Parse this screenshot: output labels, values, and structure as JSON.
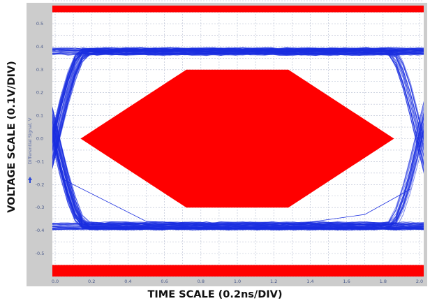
{
  "chart_data": {
    "type": "line",
    "title": "",
    "xlabel": "TIME SCALE (0.2ns/DIV)",
    "ylabel": "VOLTAGE SCALE (0.1V/DIV)",
    "signal_label": "Differential Signal, V",
    "xlim": [
      0.0,
      2.0
    ],
    "ylim": [
      -0.6,
      0.6
    ],
    "x_ticks": [
      "0.0",
      "0.2",
      "0.4",
      "0.6",
      "0.8",
      "1.0",
      "1.2",
      "1.4",
      "1.6",
      "1.8",
      "2.0"
    ],
    "y_ticks": [
      "0.5",
      "0.4",
      "0.3",
      "0.2",
      "0.1",
      "0.0",
      "-0.1",
      "-0.2",
      "-0.3",
      "-0.4",
      "-0.5"
    ],
    "grid": true,
    "colors": {
      "traces": "#1a2ee0",
      "mask": "#ff0000",
      "plot_background": "#ffffff",
      "frame": "#c8c8c8",
      "grid": "#b4bcd0"
    },
    "eye": {
      "high_level_band": [
        0.36,
        0.4
      ],
      "low_level_band": [
        -0.4,
        -0.36
      ],
      "crossing_times": [
        0.0,
        2.0
      ],
      "crossing_level": 0.0
    },
    "mask_regions": [
      {
        "name": "upper-mask",
        "x": [
          0.0,
          2.0
        ],
        "y": [
          0.55,
          0.6
        ]
      },
      {
        "name": "lower-mask",
        "x": [
          0.0,
          2.0
        ],
        "y": [
          -0.6,
          -0.55
        ]
      },
      {
        "name": "center-mask",
        "polygon": [
          [
            0.14,
            0.0
          ],
          [
            0.72,
            0.3
          ],
          [
            1.28,
            0.3
          ],
          [
            1.86,
            0.0
          ],
          [
            1.28,
            -0.3
          ],
          [
            0.72,
            -0.3
          ]
        ]
      }
    ]
  }
}
